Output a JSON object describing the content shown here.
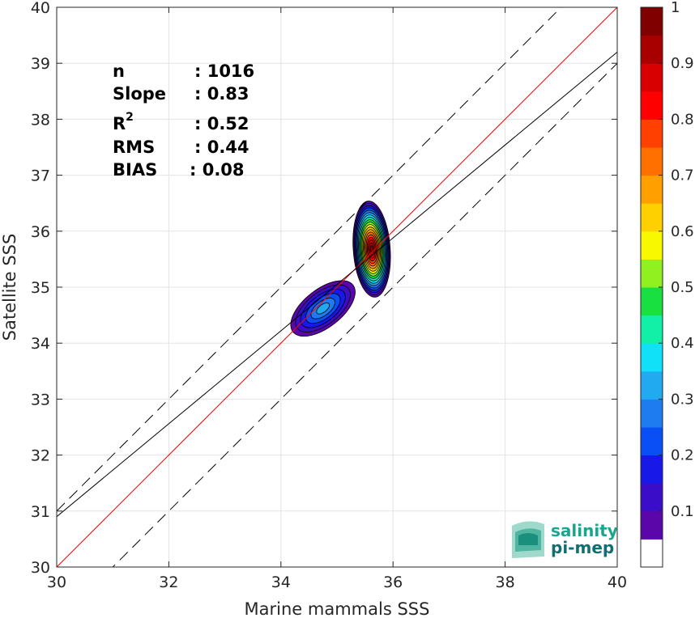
{
  "chart_data": {
    "type": "scatter",
    "subtype": "density-contour",
    "xlabel": "Marine mammals SSS",
    "ylabel": "Satellite SSS",
    "xlim": [
      30,
      40
    ],
    "ylim": [
      30,
      40
    ],
    "xticks": [
      "30",
      "32",
      "34",
      "36",
      "38",
      "40"
    ],
    "yticks": [
      "30",
      "31",
      "32",
      "33",
      "34",
      "35",
      "36",
      "37",
      "38",
      "39",
      "40"
    ],
    "grid": true,
    "stats": [
      {
        "label": "n",
        "value": ": 1016"
      },
      {
        "label": "Slope",
        "value": ": 0.83"
      },
      {
        "label": "R",
        "sup": "2",
        "value": ": 0.52"
      },
      {
        "label": "RMS",
        "value": ": 0.44"
      },
      {
        "label": "BIAS",
        "value": ": 0.08"
      }
    ],
    "lines": [
      {
        "kind": "identity",
        "color": "#ff0000",
        "slope": 1,
        "intercept": 0
      },
      {
        "kind": "regression",
        "color": "#000000",
        "slope": 0.83,
        "intercept": 6.0
      },
      {
        "kind": "upper-bound",
        "color": "#000000",
        "dashed": true,
        "slope": 1,
        "intercept": 1.0
      },
      {
        "kind": "lower-bound",
        "color": "#000000",
        "dashed": true,
        "slope": 1,
        "intercept": -1.0
      }
    ],
    "clusters": [
      {
        "center": [
          35.62,
          35.68
        ],
        "peak_density": 1.0
      },
      {
        "center": [
          34.75,
          34.62
        ],
        "peak_density": 0.33
      }
    ],
    "colorbar": {
      "range": [
        0,
        1
      ],
      "ticks": [
        "0.1",
        "0.2",
        "0.3",
        "0.4",
        "0.5",
        "0.6",
        "0.7",
        "0.8",
        "0.9",
        "1"
      ],
      "levels": [
        "#ffffff",
        "#5a06a8",
        "#3a0dc8",
        "#1818e8",
        "#0a4ef5",
        "#1e7cf0",
        "#22aaf0",
        "#10e0f8",
        "#12f0a8",
        "#18e040",
        "#90f020",
        "#f8f800",
        "#ffd000",
        "#ffa000",
        "#ff7000",
        "#ff4000",
        "#ff0000",
        "#d80000",
        "#a80000",
        "#800000"
      ]
    }
  },
  "logo": {
    "line1": "salinity",
    "line2": "pi-mep"
  }
}
